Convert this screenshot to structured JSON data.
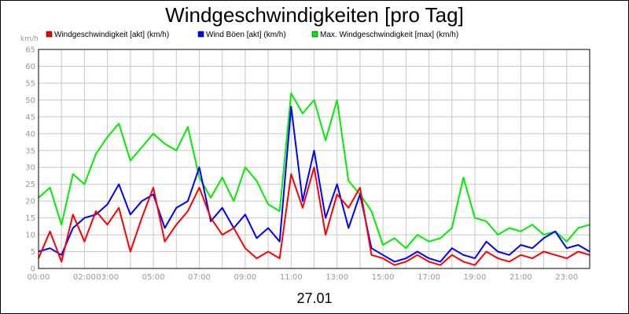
{
  "chart_data": {
    "type": "line",
    "title": "Windgeschwindigkeiten [pro Tag]",
    "ylabel": "km/h",
    "xlabel": "27.01",
    "ylim": [
      0,
      65
    ],
    "xlim": [
      0,
      24
    ],
    "y_ticks": [
      "0",
      "5",
      "10",
      "15",
      "20",
      "25",
      "30",
      "35",
      "40",
      "45",
      "50",
      "55",
      "60",
      "65"
    ],
    "x_ticks": [
      {
        "t": 0,
        "label": "00:00"
      },
      {
        "t": 2,
        "label": "02:00"
      },
      {
        "t": 3,
        "label": "03:00"
      },
      {
        "t": 5,
        "label": "05:00"
      },
      {
        "t": 7,
        "label": "07:00"
      },
      {
        "t": 9,
        "label": "09:00"
      },
      {
        "t": 11,
        "label": "11:00"
      },
      {
        "t": 13,
        "label": "13:00"
      },
      {
        "t": 15,
        "label": "15:00"
      },
      {
        "t": 17,
        "label": "17:00"
      },
      {
        "t": 19,
        "label": "19:00"
      },
      {
        "t": 21,
        "label": "21:00"
      },
      {
        "t": 23,
        "label": "23:00"
      }
    ],
    "grid": true,
    "legend_position": "top",
    "x": [
      0,
      0.5,
      1,
      1.5,
      2,
      2.5,
      3,
      3.5,
      4,
      4.5,
      5,
      5.5,
      6,
      6.5,
      7,
      7.5,
      8,
      8.5,
      9,
      9.5,
      10,
      10.5,
      11,
      11.5,
      12,
      12.5,
      13,
      13.5,
      14,
      14.5,
      15,
      15.5,
      16,
      16.5,
      17,
      17.5,
      18,
      18.5,
      19,
      19.5,
      20,
      20.5,
      21,
      21.5,
      22,
      22.5,
      23,
      23.5,
      24
    ],
    "series": [
      {
        "name": "Windgeschwindigkeit [akt] (km/h)",
        "color": "#ff0000",
        "values": [
          3,
          11,
          2,
          16,
          8,
          17,
          13,
          18,
          5,
          15,
          24,
          8,
          13,
          17,
          24,
          15,
          10,
          12,
          6,
          3,
          5,
          3,
          28,
          18,
          30,
          10,
          22,
          18,
          24,
          4,
          3,
          1,
          2,
          4,
          2,
          1,
          4,
          2,
          1,
          5,
          3,
          2,
          4,
          3,
          5,
          4,
          3,
          5,
          4
        ]
      },
      {
        "name": "Wind Böen [akt] (km/h)",
        "color": "#0000ff",
        "values": [
          5,
          6,
          4,
          12,
          15,
          16,
          19,
          25,
          16,
          20,
          22,
          12,
          18,
          20,
          30,
          14,
          18,
          12,
          16,
          9,
          12,
          8,
          48,
          20,
          35,
          15,
          25,
          12,
          22,
          6,
          4,
          2,
          3,
          5,
          3,
          2,
          6,
          4,
          3,
          8,
          5,
          4,
          7,
          6,
          9,
          11,
          6,
          7,
          5
        ]
      },
      {
        "name": "Max. Windgeschwindigkeit [max] (km/h)",
        "color": "#00ee00",
        "values": [
          21,
          24,
          13,
          28,
          25,
          34,
          39,
          43,
          32,
          36,
          40,
          37,
          35,
          42,
          27,
          21,
          27,
          20,
          30,
          26,
          19,
          17,
          52,
          46,
          50,
          38,
          50,
          26,
          22,
          17,
          7,
          9,
          6,
          10,
          8,
          9,
          12,
          27,
          15,
          14,
          10,
          12,
          11,
          13,
          10,
          11,
          8,
          12,
          13
        ]
      }
    ]
  }
}
